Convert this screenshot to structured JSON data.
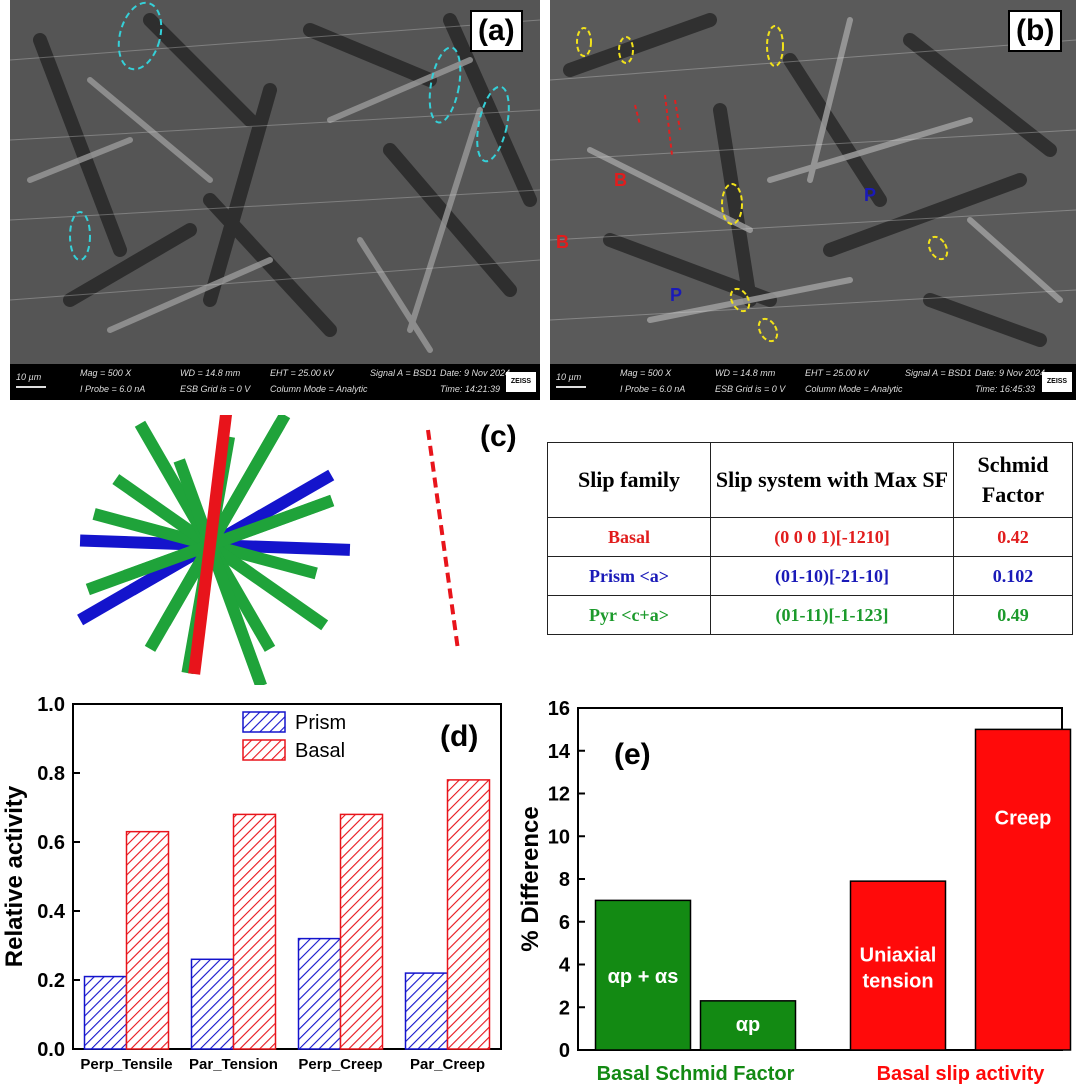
{
  "panel_a": {
    "label": "(a)",
    "databar": {
      "scale": "10 µm",
      "mag": "Mag =  500 X",
      "probe": "I Probe =  6.0 nA",
      "wd": "WD = 14.8 mm",
      "esb": "ESB Grid is =  0 V",
      "eht": "EHT = 25.00 kV",
      "column": "Column Mode = Analytic",
      "signal": "Signal A = BSD1",
      "date": "Date: 9 Nov 2024",
      "time": "Time: 14:21:39",
      "brand": "ZEISS"
    }
  },
  "panel_b": {
    "label": "(b)",
    "phase_labels": [
      "B",
      "B",
      "P",
      "P"
    ],
    "databar": {
      "scale": "10 µm",
      "mag": "Mag =  500 X",
      "probe": "I Probe =  6.0 nA",
      "wd": "WD = 14.8 mm",
      "esb": "ESB Grid is =  0 V",
      "eht": "EHT = 25.00 kV",
      "column": "Column Mode = Analytic",
      "signal": "Signal A = BSD1",
      "date": "Date: 9 Nov 2024",
      "time": "Time: 16:45:33",
      "brand": "ZEISS"
    }
  },
  "panel_c": {
    "label": "(c)",
    "table": {
      "headers": [
        "Slip family",
        "Slip system with Max SF",
        "Schmid Factor"
      ],
      "rows": [
        {
          "family": "Basal",
          "system": "(0 0 0 1)[-1210]",
          "sf": "0.42",
          "color": "#e11d1d"
        },
        {
          "family": "Prism <a>",
          "system": "(01-10)[-21-10]",
          "sf": "0.102",
          "color": "#1a1ab8"
        },
        {
          "family": "Pyr <c+a>",
          "system": "(01-11)[-1-123]",
          "sf": "0.49",
          "color": "#1c9a2c"
        }
      ]
    },
    "colors": {
      "basal": "#e8141b",
      "prism": "#1414cc",
      "pyr": "#1fa33a"
    }
  },
  "chart_data": [
    {
      "panel": "(d)",
      "type": "bar",
      "ylabel": "Relative activity",
      "xlabel": "",
      "ylim": [
        0,
        1.0
      ],
      "yticks": [
        "0.0",
        "0.2",
        "0.4",
        "0.6",
        "0.8",
        "1.0"
      ],
      "categories": [
        "Perp_Tensile",
        "Par_Tension",
        "Perp_Creep",
        "Par_Creep"
      ],
      "series": [
        {
          "name": "Prism",
          "values": [
            0.21,
            0.26,
            0.32,
            0.22
          ],
          "color": "#1414cc",
          "pattern": "hatched"
        },
        {
          "name": "Basal",
          "values": [
            0.63,
            0.68,
            0.68,
            0.78
          ],
          "color": "#e8141b",
          "pattern": "hatched"
        }
      ],
      "legend": "top-center"
    },
    {
      "panel": "(e)",
      "type": "bar",
      "ylabel": "% Difference",
      "xlabel": "",
      "ylim": [
        0,
        16
      ],
      "yticks": [
        "0",
        "2",
        "4",
        "6",
        "8",
        "10",
        "12",
        "14",
        "16"
      ],
      "bars": [
        {
          "label": "αp + αs",
          "value": 7.0,
          "color": "#138a13",
          "group": "Basal Schmid Factor"
        },
        {
          "label": "αp",
          "value": 2.3,
          "color": "#138a13",
          "group": "Basal Schmid Factor"
        },
        {
          "label": "Uniaxial tension",
          "value": 7.9,
          "color": "#ff0a0a",
          "group": "Basal slip activity"
        },
        {
          "label": "Creep",
          "value": 15.0,
          "color": "#ff0a0a",
          "group": "Basal slip activity"
        }
      ],
      "groups": [
        {
          "name": "Basal Schmid Factor",
          "color": "#138a13"
        },
        {
          "name": "Basal slip activity",
          "color": "#ff0a0a"
        }
      ]
    }
  ]
}
